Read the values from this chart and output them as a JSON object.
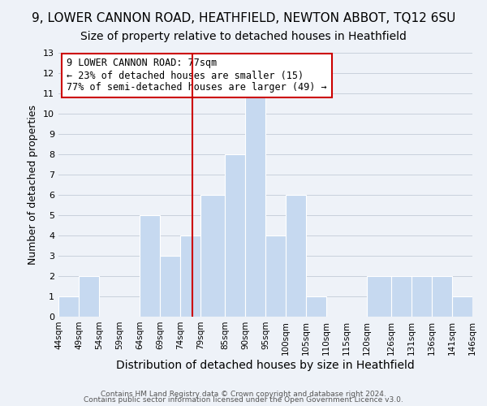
{
  "title": "9, LOWER CANNON ROAD, HEATHFIELD, NEWTON ABBOT, TQ12 6SU",
  "subtitle": "Size of property relative to detached houses in Heathfield",
  "xlabel": "Distribution of detached houses by size in Heathfield",
  "ylabel": "Number of detached properties",
  "bin_edges": [
    44,
    49,
    54,
    59,
    64,
    69,
    74,
    79,
    85,
    90,
    95,
    100,
    105,
    110,
    115,
    120,
    126,
    131,
    136,
    141,
    146
  ],
  "bin_labels": [
    "44sqm",
    "49sqm",
    "54sqm",
    "59sqm",
    "64sqm",
    "69sqm",
    "74sqm",
    "79sqm",
    "85sqm",
    "90sqm",
    "95sqm",
    "100sqm",
    "105sqm",
    "110sqm",
    "115sqm",
    "120sqm",
    "126sqm",
    "131sqm",
    "136sqm",
    "141sqm",
    "146sqm"
  ],
  "bar_heights": [
    1,
    2,
    0,
    0,
    5,
    3,
    4,
    6,
    8,
    11,
    4,
    6,
    1,
    0,
    0,
    2,
    2,
    2,
    2,
    1
  ],
  "bar_color": "#c6d9f0",
  "bar_edge_color": "#ffffff",
  "grid_color": "#c8d0dc",
  "vline_x": 77,
  "vline_color": "#cc0000",
  "ylim": [
    0,
    13
  ],
  "yticks": [
    0,
    1,
    2,
    3,
    4,
    5,
    6,
    7,
    8,
    9,
    10,
    11,
    12,
    13
  ],
  "annotation_text": "9 LOWER CANNON ROAD: 77sqm\n← 23% of detached houses are smaller (15)\n77% of semi-detached houses are larger (49) →",
  "annotation_fontsize": 8.5,
  "footer1": "Contains HM Land Registry data © Crown copyright and database right 2024.",
  "footer2": "Contains public sector information licensed under the Open Government Licence v3.0.",
  "title_fontsize": 11,
  "subtitle_fontsize": 10,
  "xlabel_fontsize": 10,
  "ylabel_fontsize": 9,
  "bg_color": "#eef2f8",
  "tick_fontsize": 7.5,
  "ytick_fontsize": 8
}
